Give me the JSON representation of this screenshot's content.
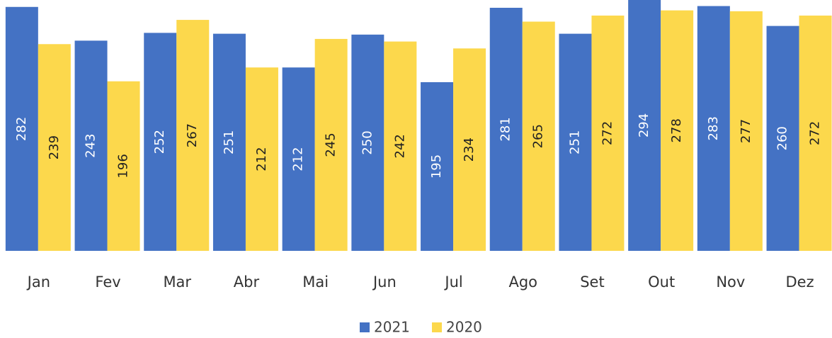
{
  "chart_data": {
    "type": "bar",
    "categories": [
      "Jan",
      "Fev",
      "Mar",
      "Abr",
      "Mai",
      "Jun",
      "Jul",
      "Ago",
      "Set",
      "Out",
      "Nov",
      "Dez"
    ],
    "series": [
      {
        "name": "2021",
        "color": "#4472c4",
        "values": [
          282,
          243,
          252,
          251,
          212,
          250,
          195,
          281,
          251,
          294,
          283,
          260
        ]
      },
      {
        "name": "2020",
        "color": "#fcd84c",
        "values": [
          239,
          196,
          267,
          212,
          245,
          242,
          234,
          265,
          272,
          278,
          277,
          272
        ]
      }
    ],
    "label_colors": [
      "#ffffff",
      "#222222"
    ],
    "ylim": [
      0,
      290
    ]
  }
}
